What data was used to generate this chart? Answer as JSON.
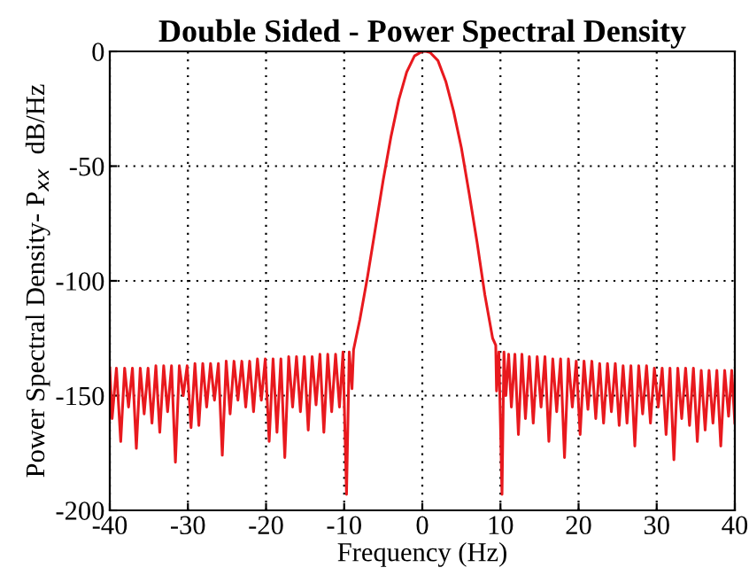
{
  "chart_data": {
    "type": "line",
    "title": "Double Sided - Power Spectral Density",
    "xlabel": "Frequency (Hz)",
    "ylabel": "Power Spectral Density- P$_{xx}$  dB/Hz",
    "xlim": [
      -40,
      40
    ],
    "ylim": [
      -200,
      0
    ],
    "xticks": [
      -40,
      -30,
      -20,
      -10,
      0,
      10,
      20,
      30,
      40
    ],
    "yticks": [
      -200,
      -150,
      -100,
      -50,
      0
    ],
    "grid": true,
    "line_style": "solid",
    "series": [
      {
        "color": "#e8191e",
        "x": [
          -40,
          -39.7,
          -39.15,
          -38.6,
          -38.1,
          -37.6,
          -37.1,
          -36.6,
          -36.1,
          -35.6,
          -35.1,
          -34.6,
          -34.1,
          -33.6,
          -33.1,
          -32.6,
          -32.1,
          -31.6,
          -31.1,
          -30.6,
          -30.1,
          -29.6,
          -29.1,
          -28.6,
          -28.1,
          -27.6,
          -27.1,
          -26.6,
          -26.1,
          -25.6,
          -25.1,
          -24.6,
          -24.1,
          -23.6,
          -23.1,
          -22.6,
          -22.1,
          -21.6,
          -21.1,
          -20.6,
          -20.1,
          -19.6,
          -19.1,
          -18.6,
          -18.1,
          -17.6,
          -17.1,
          -16.6,
          -16.1,
          -15.6,
          -15.1,
          -14.6,
          -14.1,
          -13.6,
          -13.1,
          -12.6,
          -12.1,
          -11.6,
          -11.1,
          -10.6,
          -10.15,
          -9.7,
          -9.35,
          -9.0,
          -8.8,
          -8,
          -7,
          -6,
          -5,
          -4,
          -3,
          -2,
          -1,
          0,
          0.5,
          1,
          2,
          3,
          4,
          5,
          6,
          7,
          8,
          9,
          9.4,
          9.5,
          9.8,
          10.2,
          10.45,
          10.7,
          11.05,
          11.4,
          11.85,
          12.3,
          12.75,
          13.2,
          13.7,
          14.2,
          14.7,
          15.2,
          15.7,
          16.2,
          16.7,
          17.2,
          17.7,
          18.2,
          18.7,
          19.2,
          19.7,
          20.2,
          20.7,
          21.2,
          21.7,
          22.2,
          22.7,
          23.2,
          23.7,
          24.2,
          24.7,
          25.2,
          25.7,
          26.2,
          26.7,
          27.2,
          27.7,
          28.2,
          28.7,
          29.2,
          29.7,
          30.2,
          30.7,
          31.2,
          31.7,
          32.2,
          32.7,
          33.2,
          33.7,
          34.2,
          34.7,
          35.2,
          35.7,
          36.2,
          36.7,
          37.2,
          37.7,
          38.2,
          38.7,
          39.2,
          39.6,
          40
        ],
        "values": [
          -138,
          -160,
          -138,
          -170,
          -138,
          -155,
          -138,
          -173,
          -138,
          -158,
          -138,
          -162,
          -137,
          -166,
          -137,
          -157,
          -137,
          -179,
          -137,
          -150,
          -137,
          -164,
          -136,
          -163,
          -136,
          -155,
          -136,
          -152,
          -136,
          -176,
          -135,
          -158,
          -135,
          -152,
          -135,
          -155,
          -135,
          -157,
          -134,
          -152,
          -134,
          -170,
          -134,
          -166,
          -134,
          -177,
          -133,
          -155,
          -133,
          -157,
          -133,
          -165,
          -133,
          -154,
          -132,
          -166,
          -132,
          -157,
          -132,
          -155,
          -131,
          -193,
          -131,
          -147,
          -130,
          -117,
          -98,
          -77,
          -56,
          -37,
          -21,
          -9,
          -2,
          0,
          0,
          -0.5,
          -4,
          -13,
          -26,
          -42,
          -62,
          -83,
          -106,
          -125,
          -128,
          -148,
          -131,
          -193,
          -131,
          -150,
          -132,
          -155,
          -132,
          -167,
          -132,
          -160,
          -133,
          -162,
          -133,
          -155,
          -133,
          -170,
          -134,
          -157,
          -134,
          -177,
          -134,
          -155,
          -135,
          -167,
          -135,
          -156,
          -135,
          -160,
          -136,
          -162,
          -136,
          -157,
          -136,
          -163,
          -137,
          -162,
          -137,
          -172,
          -137,
          -158,
          -137,
          -162,
          -138,
          -155,
          -138,
          -167,
          -138,
          -178,
          -138,
          -160,
          -138,
          -163,
          -138,
          -170,
          -139,
          -165,
          -139,
          -162,
          -139,
          -172,
          -139,
          -159,
          -139,
          -162
        ]
      }
    ]
  }
}
